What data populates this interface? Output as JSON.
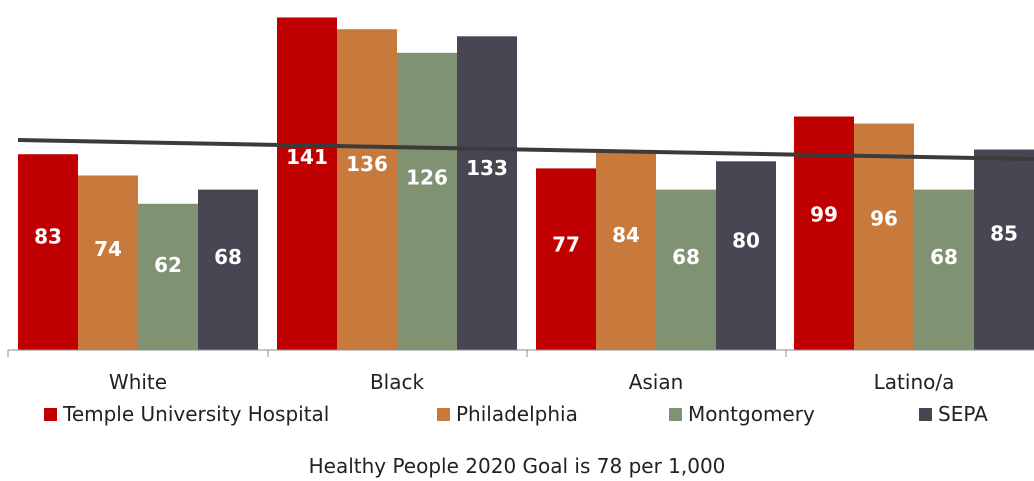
{
  "chart_data": {
    "type": "bar",
    "categories": [
      "White",
      "Black",
      "Asian",
      "Latino/a"
    ],
    "series": [
      {
        "name": "Temple University Hospital",
        "values": [
          83,
          141,
          77,
          99
        ],
        "color": "#C00000"
      },
      {
        "name": "Philadelphia",
        "values": [
          74,
          136,
          84,
          96
        ],
        "color": "#C87A3C"
      },
      {
        "name": "Montgomery",
        "values": [
          62,
          126,
          68,
          68
        ],
        "color": "#7F9272"
      },
      {
        "name": "SEPA",
        "values": [
          68,
          133,
          80,
          85
        ],
        "color": "#4A4553"
      }
    ],
    "trendline": {
      "color": "#3B3B3B",
      "values": [
        78,
        78
      ]
    },
    "ylim": [
      0,
      145
    ],
    "legend_position": "bottom",
    "grid": false,
    "note": "Healthy People 2020 Goal is 78 per 1,000"
  }
}
